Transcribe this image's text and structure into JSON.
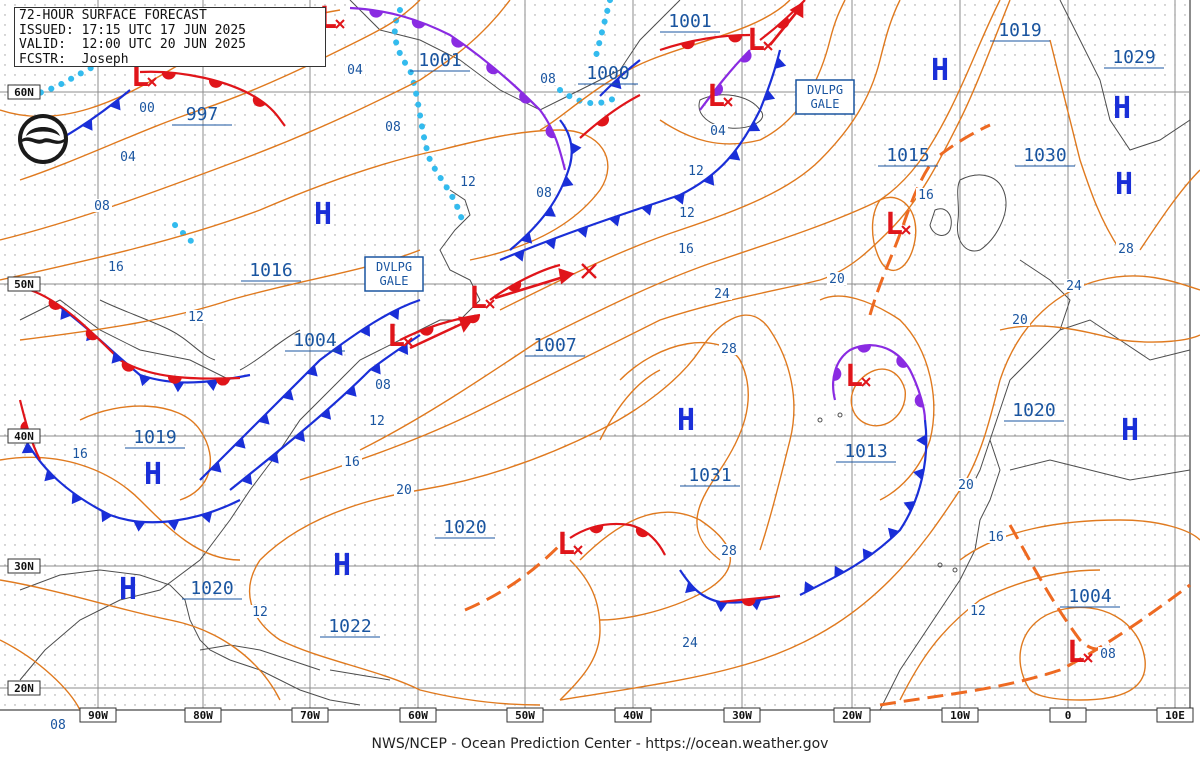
{
  "header": {
    "line1": "72-HOUR SURFACE FORECAST",
    "line2": "ISSUED: 17:15 UTC 17 JUN 2025",
    "line3": "VALID:  12:00 UTC 20 JUN 2025",
    "line4": "FCSTR:  Joseph"
  },
  "credit": "NWS/NCEP - Ocean Prediction Center - https://ocean.weather.gov",
  "logo_icon": "noaa-logo",
  "colors": {
    "isobar": "#e07a1f",
    "land": "#555555",
    "grid": "#999999",
    "cold_front": "#1a2fd8",
    "warm_front": "#e0151a",
    "occluded_front": "#8a2be2",
    "ice": "#33bbee",
    "label": "#1a55a0",
    "high": "#1a2fd8",
    "low": "#e0151a"
  },
  "lat_labels": [
    "60N",
    "50N",
    "40N",
    "30N",
    "20N"
  ],
  "lon_labels": [
    "90W",
    "80W",
    "70W",
    "60W",
    "50W",
    "40W",
    "30W",
    "20W",
    "10W",
    "0",
    "10E"
  ],
  "pressure_centers": [
    {
      "kind": "L",
      "value": "997"
    },
    {
      "kind": "L",
      "value": "1001"
    },
    {
      "kind": "L",
      "value": "1000"
    },
    {
      "kind": "L",
      "value": "1001"
    },
    {
      "kind": "H",
      "value": "1019"
    },
    {
      "kind": "H",
      "value": "1029"
    },
    {
      "kind": "H",
      "value": "1030"
    },
    {
      "kind": "L",
      "value": "1015"
    },
    {
      "kind": "H",
      "value": "1016"
    },
    {
      "kind": "L",
      "value": "1004"
    },
    {
      "kind": "L",
      "value": "1007"
    },
    {
      "kind": "H",
      "value": "1019"
    },
    {
      "kind": "H",
      "value": "1031"
    },
    {
      "kind": "L",
      "value": "1013"
    },
    {
      "kind": "H",
      "value": "1020"
    },
    {
      "kind": "H",
      "value": "1020"
    },
    {
      "kind": "H",
      "value": "1022"
    },
    {
      "kind": "H",
      "value": "1020"
    },
    {
      "kind": "L",
      "value": "1004"
    }
  ],
  "isobar_labels": [
    "04",
    "00",
    "08",
    "04",
    "08",
    "12",
    "16",
    "12",
    "08",
    "12",
    "16",
    "08",
    "12",
    "16",
    "20",
    "24",
    "28",
    "28",
    "24",
    "20",
    "16",
    "20",
    "12",
    "08",
    "04",
    "08",
    "12",
    "16",
    "20",
    "24",
    "28",
    "16",
    "12",
    "08",
    "20",
    "08"
  ],
  "warnings": [
    "DVLPG\nGALE",
    "DVLPG\nGALE"
  ]
}
